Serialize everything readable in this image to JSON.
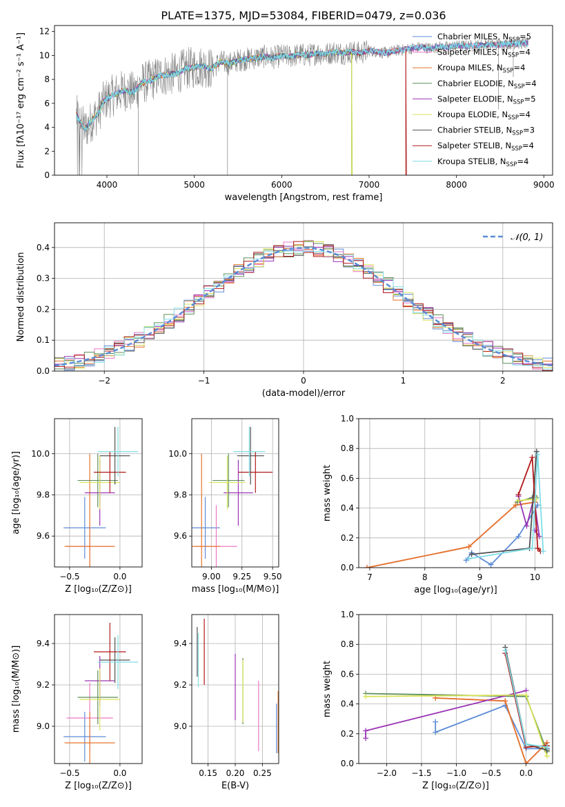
{
  "figure_title": "PLATE=1375, MJD=53084, FIBERID=0479, z=0.036",
  "colors": {
    "Chabrier MILES": "#5b8bd6",
    "Salpeter MILES": "#ea77c5",
    "Kroupa MILES": "#e57428",
    "Chabrier ELODIE": "#5e8e5a",
    "Salpeter ELODIE": "#9a33b4",
    "Kroupa ELODIE": "#d9e35a",
    "Chabrier STELIB": "#505050",
    "Salpeter STELIB": "#b01818",
    "Kroupa STELIB": "#7fdde6",
    "data": "#808080",
    "normal": "#5b8bd6"
  },
  "chart_data": [
    {
      "id": "spectrum",
      "type": "line",
      "title": "PLATE=1375, MJD=53084, FIBERID=0479, z=0.036",
      "xlabel": "wavelength [Angstrom, rest frame]",
      "ylabel": "Flux [fλ10⁻¹⁷ erg cm⁻² s⁻¹ A⁻¹]",
      "xlim": [
        3400,
        9100
      ],
      "ylim": [
        0,
        12.5
      ],
      "xticks": [
        4000,
        5000,
        6000,
        7000,
        8000,
        9000
      ],
      "yticks": [
        0,
        2,
        4,
        6,
        8,
        10,
        12
      ],
      "legend_position": "top-right",
      "legend": [
        {
          "model": "Chabrier MILES",
          "label": "Chabrier MILES, N",
          "sub": "SSP",
          "suffix": "=5"
        },
        {
          "model": "Salpeter MILES",
          "label": "Salpeter MILES, N",
          "sub": "SSP",
          "suffix": "=4"
        },
        {
          "model": "Kroupa MILES",
          "label": "Kroupa MILES, N",
          "sub": "SSP",
          "suffix": "=4"
        },
        {
          "model": "Chabrier ELODIE",
          "label": "Chabrier ELODIE, N",
          "sub": "SSP",
          "suffix": "=4"
        },
        {
          "model": "Salpeter ELODIE",
          "label": "Salpeter ELODIE, N",
          "sub": "SSP",
          "suffix": "=5"
        },
        {
          "model": "Kroupa ELODIE",
          "label": "Kroupa ELODIE, N",
          "sub": "SSP",
          "suffix": "=4"
        },
        {
          "model": "Chabrier STELIB",
          "label": "Chabrier STELIB, N",
          "sub": "SSP",
          "suffix": "=3"
        },
        {
          "model": "Salpeter STELIB",
          "label": "Salpeter STELIB, N",
          "sub": "SSP",
          "suffix": "=4"
        },
        {
          "model": "Kroupa STELIB",
          "label": "Kroupa STELIB, N",
          "sub": "SSP",
          "suffix": "=4"
        }
      ],
      "model_curve": {
        "x": [
          3650,
          3700,
          3750,
          3800,
          3850,
          3900,
          3950,
          4000,
          4100,
          4200,
          4300,
          4400,
          4500,
          4600,
          4700,
          4800,
          4900,
          5000,
          5100,
          5200,
          5300,
          5400,
          5500,
          5600,
          5700,
          5800,
          5900,
          6000,
          6100,
          6200,
          6300,
          6400,
          6500,
          6600,
          6700,
          6800,
          6900,
          7000,
          7100,
          7200,
          7300,
          7400,
          7500,
          7600,
          7700,
          7800,
          7900,
          8000,
          8100,
          8200,
          8300,
          8400,
          8500,
          8600,
          8700,
          8800
        ],
        "y": [
          5.0,
          4.4,
          3.8,
          4.3,
          4.8,
          5.2,
          6.0,
          6.4,
          6.8,
          7.1,
          6.9,
          7.7,
          7.9,
          8.3,
          8.4,
          8.5,
          8.9,
          9.0,
          9.1,
          8.9,
          9.5,
          9.3,
          9.6,
          9.7,
          9.8,
          9.9,
          9.8,
          10.0,
          9.9,
          10.1,
          10.0,
          10.2,
          10.1,
          10.3,
          10.2,
          10.3,
          10.2,
          10.4,
          10.3,
          10.2,
          10.4,
          10.5,
          10.6,
          10.7,
          10.6,
          10.7,
          10.7,
          10.8,
          10.8,
          10.8,
          10.9,
          10.9,
          10.9,
          11.0,
          11.0,
          11.0
        ]
      },
      "model_cutoffs": {
        "Salpeter STELIB": 7420,
        "Kroupa ELODIE": 6800,
        "Chabrier ELODIE": 6800
      }
    },
    {
      "id": "residuals",
      "type": "histogram",
      "xlabel": "(data-model)/error",
      "ylabel": "Normed distribution",
      "xlim": [
        -2.5,
        2.5
      ],
      "ylim": [
        0,
        0.48
      ],
      "xticks": [
        -2,
        -1,
        0,
        1,
        2
      ],
      "yticks": [
        0.0,
        0.1,
        0.2,
        0.3,
        0.4
      ],
      "grid": true,
      "legend_position": "top-right",
      "legend": {
        "label": "𝒩(0, 1)"
      },
      "bin_width": 0.1,
      "bins_range": [
        -2.5,
        2.5
      ]
    },
    {
      "id": "age_vs_Z",
      "type": "errorbar",
      "xlabel": "Z [log₁₀(Z/Z⊙)]",
      "ylabel": "age  [log₁₀(age/yr)]",
      "xlim": [
        -0.65,
        0.22
      ],
      "ylim": [
        9.45,
        10.17
      ],
      "xticks": [
        -0.5,
        0.0
      ],
      "yticks": [
        9.6,
        9.8,
        10.0
      ],
      "grid": true,
      "points": [
        {
          "model": "Chabrier MILES",
          "x": -0.35,
          "xerr": 0.21,
          "y": 9.64,
          "yerr": 0.15
        },
        {
          "model": "Salpeter MILES",
          "x": -0.3,
          "xerr": 0.23,
          "y": 9.55,
          "yerr": 0.1
        },
        {
          "model": "Kroupa MILES",
          "x": -0.3,
          "xerr": 0.25,
          "y": 9.55,
          "yerr": 0.45
        },
        {
          "model": "Chabrier ELODIE",
          "x": -0.22,
          "xerr": 0.2,
          "y": 9.87,
          "yerr": 0.13
        },
        {
          "model": "Salpeter ELODIE",
          "x": -0.2,
          "xerr": 0.15,
          "y": 9.81,
          "yerr": 0.16
        },
        {
          "model": "Kroupa ELODIE",
          "x": -0.2,
          "xerr": 0.2,
          "y": 9.86,
          "yerr": 0.13
        },
        {
          "model": "Chabrier STELIB",
          "x": -0.05,
          "xerr": 0.15,
          "y": 9.99,
          "yerr": 0.14
        },
        {
          "model": "Salpeter STELIB",
          "x": -0.1,
          "xerr": 0.16,
          "y": 9.91,
          "yerr": 0.1
        },
        {
          "model": "Kroupa STELIB",
          "x": -0.02,
          "xerr": 0.2,
          "y": 10.01,
          "yerr": 0.12
        }
      ]
    },
    {
      "id": "age_vs_mass",
      "type": "errorbar",
      "xlabel": "mass [log₁₀(M/M⊙)]",
      "ylabel": "",
      "xlim": [
        8.84,
        9.55
      ],
      "ylim": [
        9.45,
        10.17
      ],
      "xticks": [
        9.0,
        9.25,
        9.5
      ],
      "yticks": [
        9.6,
        9.8,
        10.0
      ],
      "grid": true,
      "points": [
        {
          "model": "Chabrier MILES",
          "x": 8.95,
          "xerr": 0.12,
          "y": 9.64,
          "yerr": 0.15
        },
        {
          "model": "Salpeter MILES",
          "x": 9.04,
          "xerr": 0.17,
          "y": 9.55,
          "yerr": 0.2
        },
        {
          "model": "Kroupa MILES",
          "x": 8.92,
          "xerr": 0.15,
          "y": 9.55,
          "yerr": 0.45
        },
        {
          "model": "Chabrier ELODIE",
          "x": 9.14,
          "xerr": 0.13,
          "y": 9.87,
          "yerr": 0.13
        },
        {
          "model": "Salpeter ELODIE",
          "x": 9.22,
          "xerr": 0.12,
          "y": 9.81,
          "yerr": 0.16
        },
        {
          "model": "Kroupa ELODIE",
          "x": 9.13,
          "xerr": 0.15,
          "y": 9.86,
          "yerr": 0.13
        },
        {
          "model": "Chabrier STELIB",
          "x": 9.32,
          "xerr": 0.11,
          "y": 9.99,
          "yerr": 0.14
        },
        {
          "model": "Salpeter STELIB",
          "x": 9.36,
          "xerr": 0.14,
          "y": 9.91,
          "yerr": 0.1
        },
        {
          "model": "Kroupa STELIB",
          "x": 9.31,
          "xerr": 0.13,
          "y": 10.01,
          "yerr": 0.12
        }
      ]
    },
    {
      "id": "weight_vs_age",
      "type": "line",
      "xlabel": "age  [log₁₀(age/yr)]",
      "ylabel": "mass weight",
      "xlim": [
        6.8,
        10.32
      ],
      "ylim": [
        0,
        1.0
      ],
      "xticks": [
        7,
        8,
        9,
        10
      ],
      "yticks": [
        0.0,
        0.2,
        0.4,
        0.6,
        0.8,
        1.0
      ],
      "grid": true,
      "series": [
        {
          "model": "Chabrier MILES",
          "x": [
            8.75,
            8.85,
            9.2,
            9.7,
            10.05
          ],
          "y": [
            0.05,
            0.1,
            0.02,
            0.21,
            0.42
          ]
        },
        {
          "model": "Salpeter MILES",
          "x": [
            6.95,
            8.8,
            9.65,
            10.0
          ],
          "y": [
            0.0,
            0.14,
            0.42,
            0.44
          ]
        },
        {
          "model": "Kroupa MILES",
          "x": [
            6.95,
            8.8,
            9.65,
            10.0
          ],
          "y": [
            0.0,
            0.14,
            0.42,
            0.44
          ]
        },
        {
          "model": "Chabrier ELODIE",
          "x": [
            9.68,
            9.95,
            10.0,
            10.02
          ],
          "y": [
            0.44,
            0.47,
            0.48,
            0.47
          ]
        },
        {
          "model": "Salpeter ELODIE",
          "x": [
            9.7,
            9.85,
            9.98,
            10.08,
            10.0
          ],
          "y": [
            0.48,
            0.28,
            0.47,
            0.21,
            0.25
          ]
        },
        {
          "model": "Kroupa ELODIE",
          "x": [
            9.7,
            9.98,
            10.02
          ],
          "y": [
            0.45,
            0.46,
            0.46
          ]
        },
        {
          "model": "Chabrier STELIB",
          "x": [
            8.85,
            9.9,
            10.03
          ],
          "y": [
            0.09,
            0.13,
            0.78
          ]
        },
        {
          "model": "Salpeter STELIB",
          "x": [
            9.7,
            9.95,
            10.05,
            10.1
          ],
          "y": [
            0.49,
            0.74,
            0.13,
            0.11
          ]
        },
        {
          "model": "Kroupa STELIB",
          "x": [
            8.8,
            9.95,
            10.05,
            10.15
          ],
          "y": [
            0.06,
            0.13,
            0.76,
            0.11
          ]
        }
      ]
    },
    {
      "id": "mass_vs_Z",
      "type": "errorbar",
      "xlabel": "Z [log₁₀(Z/Z⊙)]",
      "ylabel": "mass [log₁₀(M/M⊙)]",
      "xlim": [
        -0.65,
        0.22
      ],
      "ylim": [
        8.82,
        9.54
      ],
      "xticks": [
        -0.5,
        0.0
      ],
      "yticks": [
        9.0,
        9.2,
        9.4
      ],
      "grid": true,
      "points": [
        {
          "model": "Chabrier MILES",
          "x": -0.35,
          "xerr": 0.21,
          "y": 8.95,
          "yerr": 0.12
        },
        {
          "model": "Salpeter MILES",
          "x": -0.3,
          "xerr": 0.23,
          "y": 9.04,
          "yerr": 0.17
        },
        {
          "model": "Kroupa MILES",
          "x": -0.3,
          "xerr": 0.25,
          "y": 8.92,
          "yerr": 0.15
        },
        {
          "model": "Chabrier ELODIE",
          "x": -0.22,
          "xerr": 0.2,
          "y": 9.14,
          "yerr": 0.13
        },
        {
          "model": "Salpeter ELODIE",
          "x": -0.2,
          "xerr": 0.15,
          "y": 9.22,
          "yerr": 0.12
        },
        {
          "model": "Kroupa ELODIE",
          "x": -0.2,
          "xerr": 0.2,
          "y": 9.13,
          "yerr": 0.15
        },
        {
          "model": "Chabrier STELIB",
          "x": -0.05,
          "xerr": 0.15,
          "y": 9.32,
          "yerr": 0.11
        },
        {
          "model": "Salpeter STELIB",
          "x": -0.1,
          "xerr": 0.16,
          "y": 9.36,
          "yerr": 0.14
        },
        {
          "model": "Kroupa STELIB",
          "x": -0.02,
          "xerr": 0.2,
          "y": 9.31,
          "yerr": 0.13
        }
      ]
    },
    {
      "id": "mass_vs_ebv",
      "type": "errorbar",
      "xlabel": "E(B-V)",
      "ylabel": "",
      "xlim": [
        0.12,
        0.28
      ],
      "ylim": [
        8.82,
        9.54
      ],
      "xticks": [
        0.15,
        0.2,
        0.25
      ],
      "yticks": [
        9.0,
        9.2,
        9.4
      ],
      "grid": true,
      "points": [
        {
          "model": "Chabrier MILES",
          "x": 0.276,
          "y": 8.99,
          "yerr": 0.12
        },
        {
          "model": "Salpeter MILES",
          "x": 0.243,
          "y": 9.05,
          "yerr": 0.17
        },
        {
          "model": "Kroupa MILES",
          "x": 0.279,
          "y": 9.02,
          "yerr": 0.15
        },
        {
          "model": "Chabrier ELODIE",
          "x": 0.214,
          "y": 9.17,
          "yerr": 0.16
        },
        {
          "model": "Salpeter ELODIE",
          "x": 0.2,
          "y": 9.19,
          "yerr": 0.16
        },
        {
          "model": "Kroupa ELODIE",
          "x": 0.214,
          "y": 9.17,
          "yerr": 0.15
        },
        {
          "model": "Chabrier STELIB",
          "x": 0.13,
          "y": 9.36,
          "yerr": 0.12
        },
        {
          "model": "Salpeter STELIB",
          "x": 0.143,
          "y": 9.36,
          "yerr": 0.16
        },
        {
          "model": "Kroupa STELIB",
          "x": 0.132,
          "y": 9.32,
          "yerr": 0.13
        }
      ]
    },
    {
      "id": "weight_vs_Z",
      "type": "line",
      "xlabel": "Z [log₁₀(Z/Z⊙)]",
      "ylabel": "mass weight",
      "xlim": [
        -2.4,
        0.38
      ],
      "ylim": [
        0,
        1.0
      ],
      "xticks": [
        -2.0,
        -1.5,
        -1.0,
        -0.5,
        0.0
      ],
      "yticks": [
        0.0,
        0.2,
        0.4,
        0.6,
        0.8,
        1.0
      ],
      "grid": true,
      "series": [
        {
          "model": "Chabrier MILES",
          "x": [
            -1.3,
            -1.3,
            -0.3,
            0.0,
            0.3
          ],
          "y": [
            0.28,
            0.21,
            0.39,
            0.1,
            0.1
          ]
        },
        {
          "model": "Salpeter MILES",
          "x": [
            -1.3,
            -0.3,
            0.0,
            0.3
          ],
          "y": [
            0.44,
            0.42,
            0.0,
            0.14
          ]
        },
        {
          "model": "Kroupa MILES",
          "x": [
            -1.3,
            -0.3,
            0.0,
            0.3
          ],
          "y": [
            0.44,
            0.42,
            0.0,
            0.14
          ]
        },
        {
          "model": "Chabrier ELODIE",
          "x": [
            -2.3,
            0.0,
            0.3
          ],
          "y": [
            0.47,
            0.45,
            0.08
          ]
        },
        {
          "model": "Salpeter ELODIE",
          "x": [
            -2.3,
            -2.3,
            0.0
          ],
          "y": [
            0.17,
            0.22,
            0.49
          ]
        },
        {
          "model": "Kroupa ELODIE",
          "x": [
            -2.3,
            0.0,
            0.3
          ],
          "y": [
            0.45,
            0.46,
            0.05
          ]
        },
        {
          "model": "Chabrier STELIB",
          "x": [
            -0.3,
            0.0,
            0.3
          ],
          "y": [
            0.78,
            0.13,
            0.09
          ]
        },
        {
          "model": "Salpeter STELIB",
          "x": [
            -0.3,
            0.0,
            0.3
          ],
          "y": [
            0.74,
            0.11,
            0.12
          ]
        },
        {
          "model": "Kroupa STELIB",
          "x": [
            -0.3,
            0.0,
            0.3
          ],
          "y": [
            0.76,
            0.13,
            0.11
          ]
        }
      ]
    }
  ]
}
